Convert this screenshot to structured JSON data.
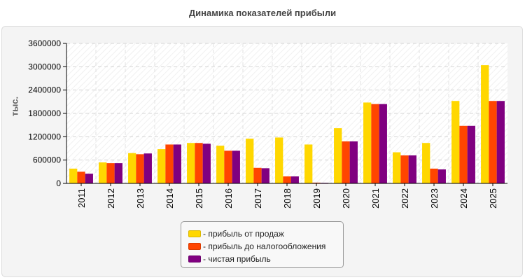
{
  "chart_data": {
    "type": "bar",
    "title": "Динамика показателей прибыли",
    "ylabel": "тыс.",
    "xlabel": "",
    "ylim": [
      0,
      3600000
    ],
    "yticks": [
      0,
      600000,
      1200000,
      1800000,
      2400000,
      3000000,
      3600000
    ],
    "grid": true,
    "legend_position": "bottom",
    "categories": [
      "2011",
      "2012",
      "2013",
      "2014",
      "2015",
      "2016",
      "2017",
      "2018",
      "2019",
      "2020",
      "2021",
      "2022",
      "2023",
      "2024",
      "2025"
    ],
    "series": [
      {
        "name": "- прибыль от продаж",
        "color": "#ffd700",
        "values": [
          380000,
          540000,
          780000,
          880000,
          1040000,
          970000,
          1150000,
          1180000,
          1000000,
          1420000,
          2080000,
          800000,
          1040000,
          2120000,
          3040000
        ]
      },
      {
        "name": "- прибыль до налогообложения",
        "color": "#ff4500",
        "values": [
          300000,
          520000,
          750000,
          1000000,
          1040000,
          840000,
          400000,
          180000,
          20000,
          1080000,
          2040000,
          720000,
          380000,
          1480000,
          2120000
        ]
      },
      {
        "name": "- чистая прибыль",
        "color": "#800080",
        "values": [
          250000,
          520000,
          770000,
          1000000,
          1020000,
          840000,
          390000,
          180000,
          15000,
          1080000,
          2040000,
          720000,
          360000,
          1480000,
          2120000
        ]
      }
    ]
  }
}
